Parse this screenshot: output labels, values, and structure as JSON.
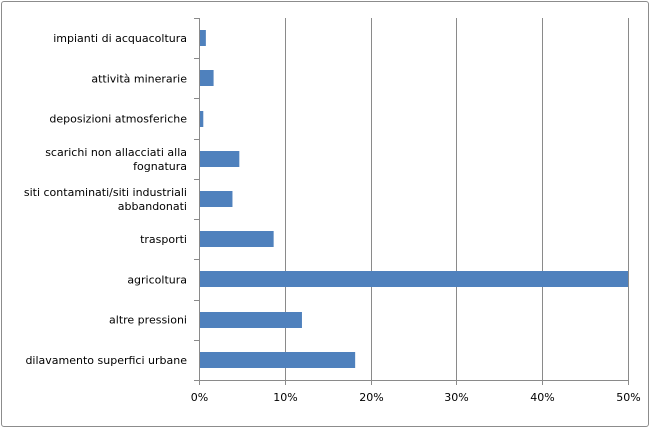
{
  "chart_data": {
    "type": "bar",
    "orientation": "horizontal",
    "categories": [
      [
        "impianti di acquacoltura"
      ],
      [
        "attività minerarie"
      ],
      [
        "deposizioni atmosferiche"
      ],
      [
        "scarichi non allacciati alla",
        "fognatura"
      ],
      [
        "siti contaminati/siti industriali",
        "abbandonati"
      ],
      [
        "trasporti"
      ],
      [
        "agricoltura"
      ],
      [
        "altre pressioni"
      ],
      [
        "dilavamento superfici urbane"
      ]
    ],
    "values": [
      0.8,
      1.7,
      0.5,
      4.7,
      3.9,
      8.7,
      50,
      12,
      18.2
    ],
    "xlim": [
      0,
      50
    ],
    "xticks": [
      0,
      10,
      20,
      30,
      40,
      50
    ],
    "xtick_labels": [
      "0%",
      "10%",
      "20%",
      "30%",
      "40%",
      "50%"
    ],
    "grid": "vertical",
    "bar_color": "#4f81bd",
    "title": "",
    "xlabel": "",
    "ylabel": ""
  }
}
